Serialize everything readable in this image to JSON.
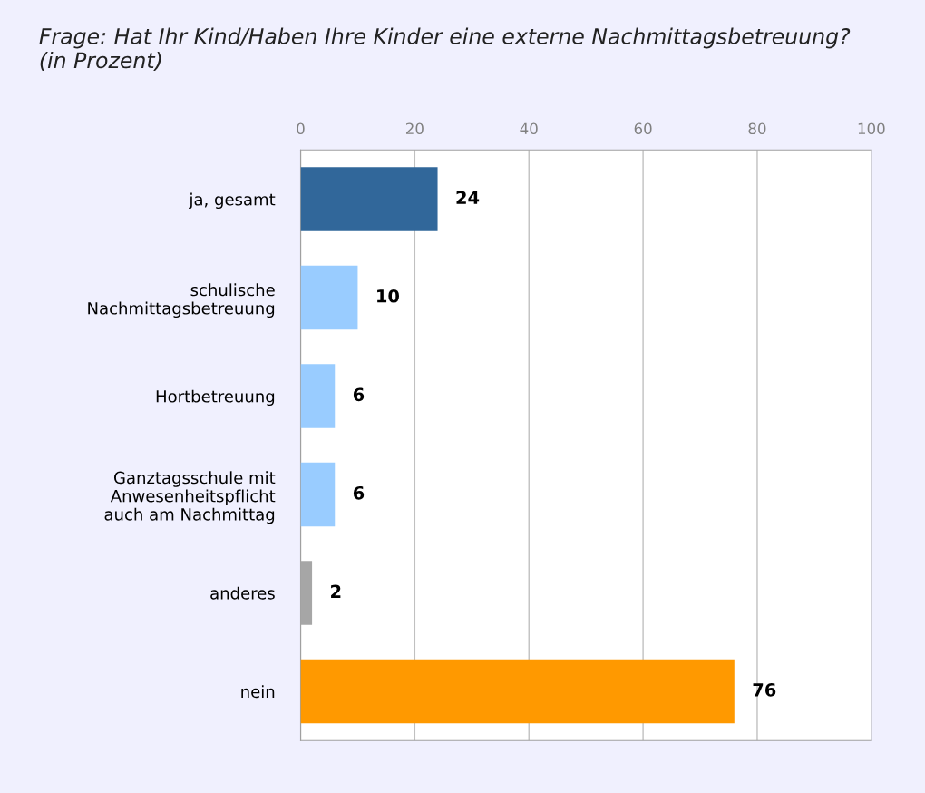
{
  "chart_data": {
    "type": "bar",
    "orientation": "horizontal",
    "title": "Frage: Hat Ihr Kind/Haben Ihre Kinder eine externe Nachmittagsbetreuung?\n(in Prozent)",
    "categories": [
      "ja, gesamt",
      "schulische\nNachmittagsbetreuung",
      "Hortbetreuung",
      "Ganztagsschule mit\nAnwesenheitspflicht\nauch am Nachmittag",
      "anderes",
      "nein"
    ],
    "values": [
      24,
      10,
      6,
      6,
      2,
      76
    ],
    "colors": [
      "#31679a",
      "#99ccff",
      "#99ccff",
      "#99ccff",
      "#a6a6a6",
      "#ff9900"
    ],
    "xlim": [
      0,
      100
    ],
    "xticks": [
      0,
      20,
      40,
      60,
      80,
      100
    ],
    "grid": "x",
    "data_labels": true,
    "legend": false
  }
}
